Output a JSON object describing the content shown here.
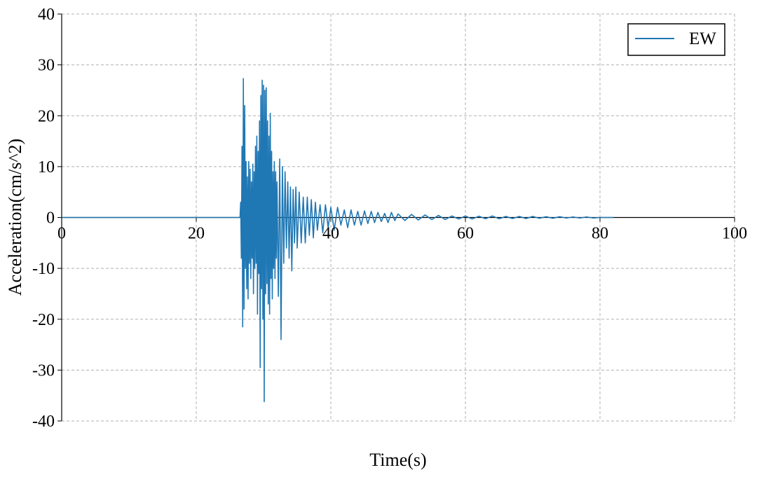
{
  "chart_data": {
    "type": "line",
    "title": "",
    "xlabel": "Time(s)",
    "ylabel": "Acceleration(cm/s^2)",
    "xlim": [
      0,
      100
    ],
    "ylim": [
      -40,
      40
    ],
    "xticks": [
      0,
      20,
      40,
      60,
      80,
      100
    ],
    "yticks": [
      -40,
      -30,
      -20,
      -10,
      0,
      10,
      20,
      30,
      40
    ],
    "xtick_labels": [
      "0",
      "20",
      "40",
      "60",
      "80",
      "100"
    ],
    "ytick_labels": [
      "-40",
      "-30",
      "-20",
      "-10",
      "0",
      "10",
      "20",
      "30",
      "40"
    ],
    "grid": true,
    "legend_position": "top-right",
    "zero_line": true,
    "series": [
      {
        "name": "EW",
        "color": "#1f77b4",
        "x": [
          0,
          26.5,
          26.6,
          26.7,
          26.8,
          26.9,
          27.0,
          27.1,
          27.2,
          27.3,
          27.4,
          27.5,
          27.6,
          27.7,
          27.8,
          27.9,
          28.0,
          28.1,
          28.2,
          28.3,
          28.4,
          28.5,
          28.6,
          28.7,
          28.8,
          28.9,
          29.0,
          29.1,
          29.2,
          29.3,
          29.4,
          29.5,
          29.6,
          29.7,
          29.8,
          29.9,
          30.0,
          30.1,
          30.2,
          30.3,
          30.4,
          30.5,
          30.6,
          30.7,
          30.8,
          30.9,
          31.0,
          31.1,
          31.2,
          31.3,
          31.4,
          31.5,
          31.6,
          31.7,
          31.8,
          31.9,
          32.0,
          32.2,
          32.4,
          32.6,
          32.8,
          33.0,
          33.2,
          33.4,
          33.6,
          33.8,
          34.0,
          34.2,
          34.4,
          34.6,
          34.8,
          35.0,
          35.3,
          35.6,
          35.9,
          36.2,
          36.5,
          36.8,
          37.1,
          37.4,
          37.7,
          38.0,
          38.4,
          38.8,
          39.2,
          39.6,
          40.0,
          40.5,
          41.0,
          41.5,
          42.0,
          42.5,
          43.0,
          43.5,
          44.0,
          44.5,
          45.0,
          45.5,
          46.0,
          46.5,
          47.0,
          47.5,
          48.0,
          48.5,
          49.0,
          49.5,
          50.0,
          51.0,
          52.0,
          53.0,
          54.0,
          55.0,
          56.0,
          57.0,
          58.0,
          59.0,
          60.0,
          61.0,
          62.0,
          63.0,
          64.0,
          65.0,
          66.0,
          67.0,
          68.0,
          69.0,
          70.0,
          71.0,
          72.0,
          73.0,
          74.0,
          75.0,
          76.0,
          77.0,
          78.0,
          79.0,
          80.0,
          82.0
        ],
        "values": [
          0,
          0,
          3,
          -8,
          14,
          -21.5,
          27.3,
          -18,
          22,
          -10,
          11,
          -14,
          8,
          -16,
          11,
          -9,
          9.5,
          -12,
          7,
          -8,
          10.5,
          -15,
          9,
          -10,
          14,
          -9,
          16,
          -19,
          13,
          -11,
          19,
          -29.5,
          24,
          -14,
          27,
          -20,
          26,
          -36.2,
          25,
          -15,
          25.5,
          -13,
          19,
          -17,
          16,
          -19,
          20.5,
          -12,
          13,
          -16,
          9,
          -10,
          11,
          -12,
          9,
          -8,
          7,
          -15.5,
          11.5,
          -24,
          10,
          -9,
          9,
          -6,
          7,
          -8,
          6,
          -10.5,
          5.5,
          -5,
          6,
          -6,
          5,
          -5,
          4,
          -5,
          4,
          -3.5,
          3.5,
          -4,
          3,
          -2.5,
          2.5,
          -3,
          2.5,
          -2,
          2,
          -2.5,
          2,
          -1.5,
          1.5,
          -2,
          1.5,
          -1.5,
          1.2,
          -1.5,
          1.3,
          -1.2,
          1.2,
          -1,
          1,
          -0.8,
          0.8,
          -1,
          1,
          -0.6,
          0.7,
          -0.6,
          0.6,
          -0.5,
          0.5,
          -0.4,
          0.4,
          -0.4,
          0.3,
          -0.3,
          0.3,
          -0.3,
          0.25,
          -0.25,
          0.3,
          -0.25,
          0.2,
          -0.2,
          0.2,
          -0.2,
          0.2,
          -0.15,
          0.15,
          -0.15,
          0.15,
          -0.1,
          0.1,
          -0.1,
          0.1,
          -0.1,
          0,
          0
        ]
      }
    ]
  }
}
